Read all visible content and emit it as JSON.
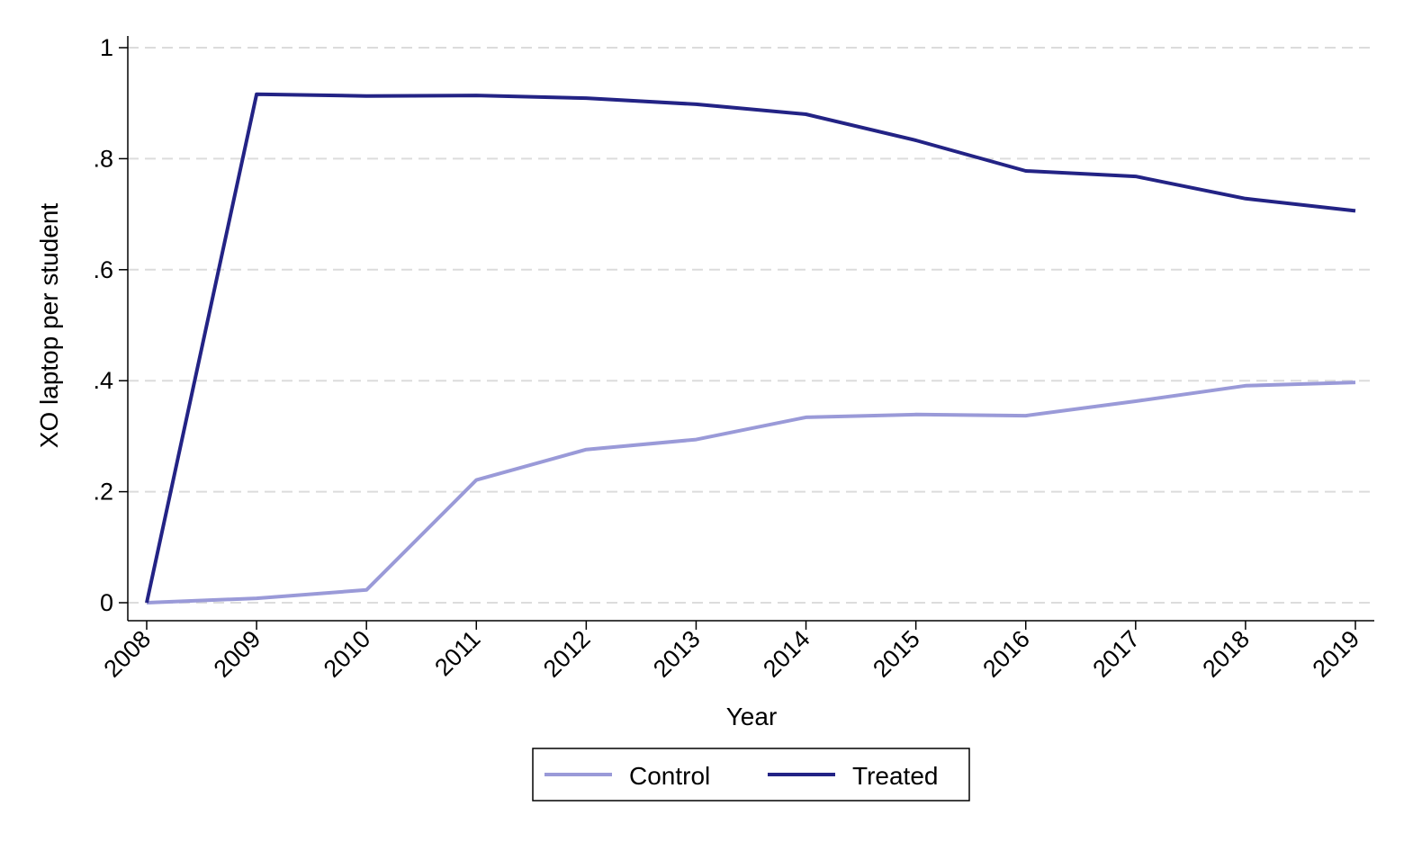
{
  "chart_data": {
    "type": "line",
    "title": "",
    "xlabel": "Year",
    "ylabel": "XO laptop per student",
    "x": [
      2008,
      2009,
      2010,
      2011,
      2012,
      2013,
      2014,
      2015,
      2016,
      2017,
      2018,
      2019
    ],
    "y_ticks": [
      {
        "value": 0,
        "label": "0"
      },
      {
        "value": 0.2,
        "label": ".2"
      },
      {
        "value": 0.4,
        "label": ".4"
      },
      {
        "value": 0.6,
        "label": ".6"
      },
      {
        "value": 0.8,
        "label": ".8"
      },
      {
        "value": 1,
        "label": "1"
      }
    ],
    "x_tick_labels": [
      "2008",
      "2009",
      "2010",
      "2011",
      "2012",
      "2013",
      "2014",
      "2015",
      "2016",
      "2017",
      "2018",
      "2019"
    ],
    "ylim": [
      0,
      1
    ],
    "grid": "horizontal dashed",
    "legend_position": "bottom",
    "series": [
      {
        "name": "Control",
        "color": "#9a9ad8",
        "values": [
          0.0,
          0.008,
          0.023,
          0.221,
          0.276,
          0.294,
          0.334,
          0.339,
          0.337,
          0.363,
          0.391,
          0.397
        ]
      },
      {
        "name": "Treated",
        "color": "#232385",
        "values": [
          0.0,
          0.916,
          0.913,
          0.914,
          0.909,
          0.898,
          0.88,
          0.833,
          0.778,
          0.768,
          0.728,
          0.706
        ]
      }
    ]
  }
}
